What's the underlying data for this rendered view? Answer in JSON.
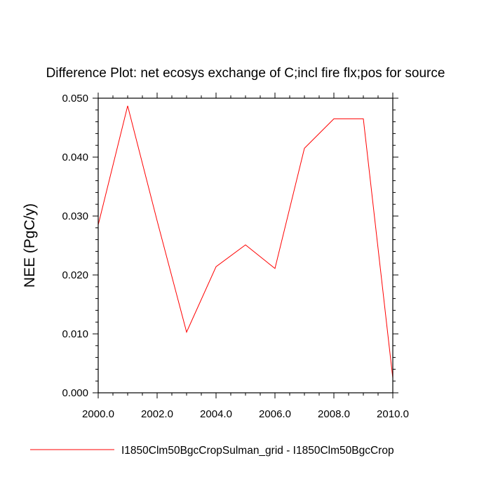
{
  "chart_data": {
    "type": "line",
    "title": "Difference Plot: net ecosys exchange of C;incl fire flx;pos for source",
    "xlabel": "",
    "ylabel": "NEE  (PgC/y)",
    "xlim": [
      2000,
      2010
    ],
    "ylim": [
      0,
      0.05
    ],
    "x_ticks": [
      "2000.0",
      "2002.0",
      "2004.0",
      "2006.0",
      "2008.0",
      "2010.0"
    ],
    "y_ticks": [
      "0.000",
      "0.010",
      "0.020",
      "0.030",
      "0.040",
      "0.050"
    ],
    "grid": false,
    "legend_position": "bottom",
    "series": [
      {
        "name": "I1850Clm50BgcCropSulman_grid - I1850Clm50BgcCrop",
        "color": "#ff0000",
        "x": [
          2000,
          2001,
          2002,
          2003,
          2004,
          2005,
          2006,
          2007,
          2008,
          2009,
          2010
        ],
        "values": [
          0.0285,
          0.0487,
          0.0292,
          0.0103,
          0.0214,
          0.0251,
          0.0211,
          0.0415,
          0.0465,
          0.0465,
          0.0025
        ]
      }
    ]
  }
}
